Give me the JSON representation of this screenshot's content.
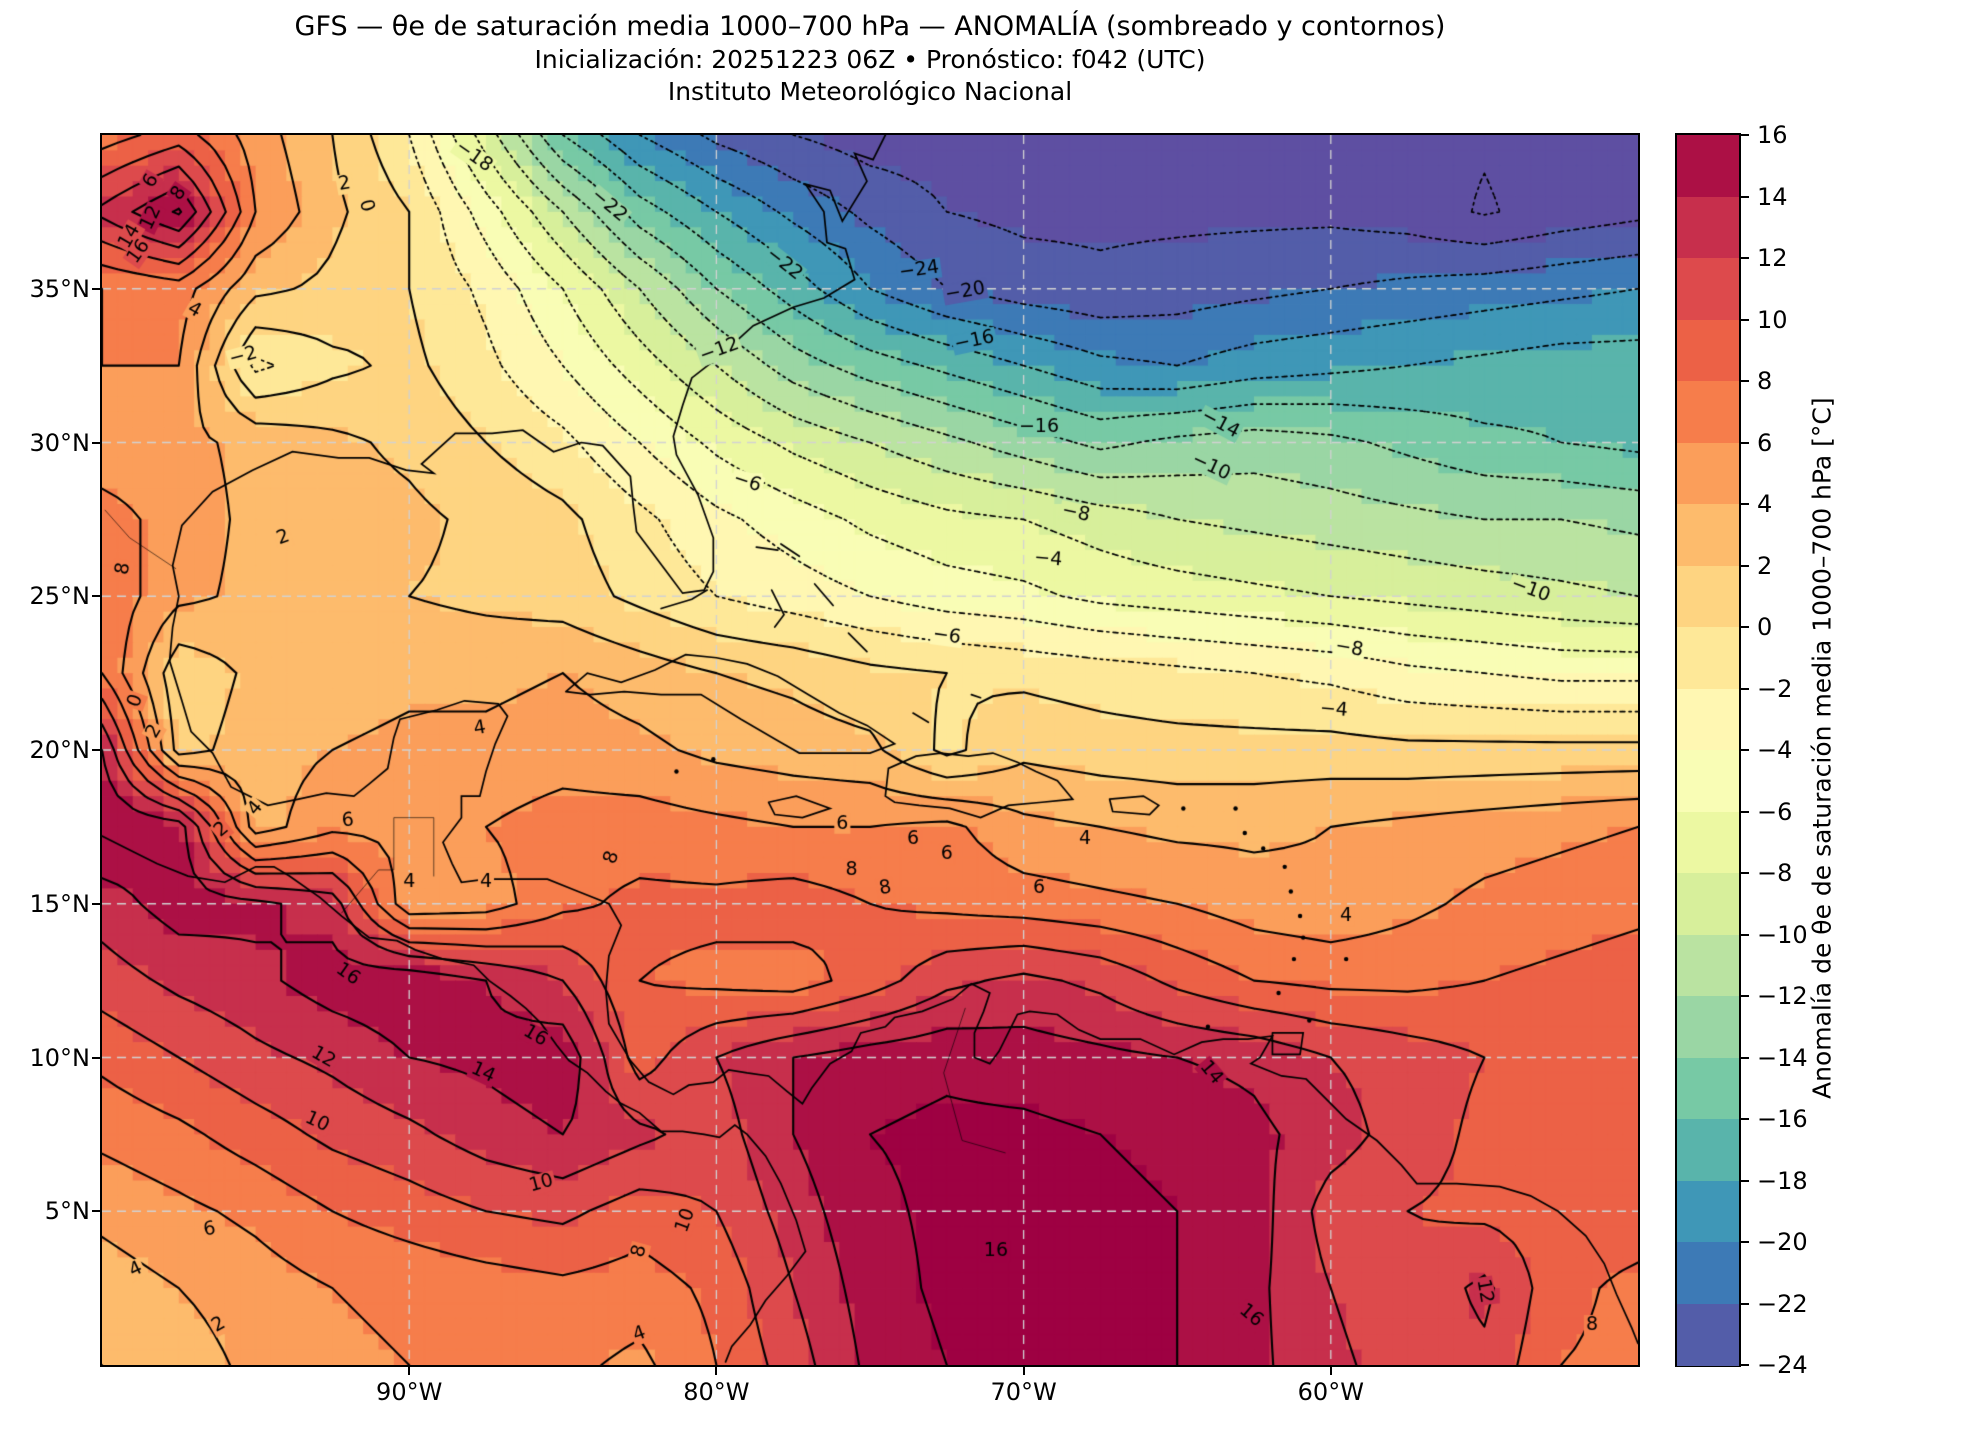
{
  "header": {
    "title": "GFS — θe de saturación media 1000–700 hPa — ANOMALÍA (sombreado y contornos)",
    "subtitle": "Inicialización: 20251223 06Z    •    Pronóstico: f042 (UTC)",
    "institution": "Instituto Meteorológico Nacional"
  },
  "axes": {
    "x_ticks": [
      {
        "label": "90°W",
        "lon": -90
      },
      {
        "label": "80°W",
        "lon": -80
      },
      {
        "label": "70°W",
        "lon": -70
      },
      {
        "label": "60°W",
        "lon": -60
      }
    ],
    "y_ticks": [
      {
        "label": "35°N",
        "lat": 35
      },
      {
        "label": "30°N",
        "lat": 30
      },
      {
        "label": "25°N",
        "lat": 25
      },
      {
        "label": "20°N",
        "lat": 20
      },
      {
        "label": "15°N",
        "lat": 15
      },
      {
        "label": "10°N",
        "lat": 10
      },
      {
        "label": "5°N",
        "lat": 5
      }
    ],
    "lon_range": [
      -100,
      -50
    ],
    "lat_range": [
      0,
      40
    ],
    "gridline_lons": [
      -90,
      -80,
      -70,
      -60
    ],
    "gridline_lats": [
      5,
      10,
      15,
      20,
      25,
      30,
      35
    ],
    "grid_color": "#d2d2d2"
  },
  "colorbar": {
    "label": "Anomalía de θe de saturación media 1000–700 hPa [°C]",
    "tick_values": [
      16,
      14,
      12,
      10,
      8,
      6,
      4,
      2,
      0,
      -2,
      -4,
      -6,
      -8,
      -10,
      -12,
      -14,
      -16,
      -18,
      -20,
      -22,
      -24
    ],
    "tick_labels": [
      "16",
      "14",
      "12",
      "10",
      "8",
      "6",
      "4",
      "2",
      "0",
      "−2",
      "−4",
      "−6",
      "−8",
      "−10",
      "−12",
      "−14",
      "−16",
      "−18",
      "−20",
      "−22",
      "−24"
    ],
    "vmin": -24,
    "vmax": 16,
    "band_step": 2
  },
  "chart_data": {
    "type": "heatmap",
    "title": "GFS saturation θe anomaly 1000–700 hPa (°C), shaded and contoured",
    "units": "°C",
    "colormap": {
      "name": "Spectral_r",
      "anchors": [
        "#5e4fa2",
        "#3288bd",
        "#66c2a5",
        "#abdda4",
        "#e6f598",
        "#ffffbf",
        "#fee08b",
        "#fdae61",
        "#f46d43",
        "#d53e4f",
        "#9e0142"
      ]
    },
    "fill_levels": {
      "min": -24,
      "max": 16,
      "step": 2
    },
    "line_levels": {
      "min": -26,
      "max": 16,
      "step": 2,
      "negative_style": "dotted",
      "positive_style": "solid"
    },
    "x_lons": [
      -100,
      -97.5,
      -95,
      -92.5,
      -90,
      -87.5,
      -85,
      -82.5,
      -80,
      -77.5,
      -75,
      -72.5,
      -70,
      -67.5,
      -65,
      -62.5,
      -60,
      -57.5,
      -55,
      -52.5,
      -50
    ],
    "y_lats": [
      40,
      37.5,
      35,
      32.5,
      30,
      27.5,
      25,
      22.5,
      20,
      17.5,
      15,
      12.5,
      10,
      7.5,
      5,
      2.5,
      0
    ],
    "values": [
      [
        7,
        9,
        5,
        2,
        -2,
        -9,
        -16,
        -20,
        -22.5,
        -24,
        -25,
        -25,
        -25,
        -25,
        -25,
        -25,
        -25,
        -25.5,
        -25.8,
        -25.2,
        -25
      ],
      [
        12.5,
        16.3,
        6,
        2.5,
        0,
        -5,
        -10,
        -15,
        -18,
        -20.5,
        -22.5,
        -24,
        -24.5,
        -24.5,
        -24.5,
        -24.5,
        -24.5,
        -25,
        -26.2,
        -25.2,
        -24.5
      ],
      [
        6,
        7,
        2.5,
        1.5,
        0,
        -2.5,
        -6,
        -10,
        -14,
        -17,
        -20,
        -22,
        -23,
        -23.5,
        -23,
        -22.5,
        -22,
        -21.5,
        -21,
        -20.5,
        -20
      ],
      [
        6,
        6,
        -2.5,
        -0.5,
        0.5,
        -1.5,
        -4,
        -7,
        -10,
        -13,
        -15,
        -16.5,
        -18,
        -19.5,
        -20,
        -19,
        -18.5,
        -18,
        -17.5,
        -17,
        -17
      ],
      [
        4.5,
        4.5,
        3.5,
        2.5,
        1.5,
        0,
        -1.5,
        -4,
        -6.5,
        -8.5,
        -10,
        -11.5,
        -13,
        -14.5,
        -13.5,
        -13,
        -13.5,
        -14.5,
        -15.5,
        -16,
        -16.5
      ],
      [
        7,
        5,
        3.5,
        3,
        2.5,
        1.5,
        0.5,
        -1.5,
        -3.5,
        -5,
        -6.5,
        -7.5,
        -8,
        -9,
        -10,
        -10.5,
        -11,
        -11.5,
        -12,
        -12,
        -12.5
      ],
      [
        7.5,
        4.5,
        3.5,
        2.5,
        2,
        1.5,
        1,
        -0.5,
        -2,
        -3,
        -4,
        -5,
        -5.5,
        -6.5,
        -7,
        -7.5,
        -8,
        -8.5,
        -9,
        -9.5,
        -10
      ],
      [
        8,
        0.5,
        2.5,
        3,
        3.5,
        3.5,
        4,
        3,
        2,
        1.5,
        0.5,
        0,
        -0.5,
        -1,
        -1.5,
        -2,
        -2.5,
        -3.5,
        -4,
        -4.5,
        -4.5
      ],
      [
        14,
        1.2,
        3,
        4,
        4.5,
        4.5,
        5,
        4.5,
        3.5,
        3,
        2.5,
        -0.5,
        1.5,
        1,
        0.8,
        0.8,
        0.8,
        0.5,
        0.5,
        0.5,
        0.5
      ],
      [
        16,
        15,
        3,
        5.5,
        5.5,
        6,
        7,
        7,
        6.5,
        6,
        6,
        6.5,
        4.5,
        4,
        3.5,
        3.5,
        4,
        4.5,
        5,
        5.5,
        6
      ],
      [
        13,
        15,
        14.5,
        13,
        4.5,
        5,
        7.5,
        8.5,
        8.5,
        9,
        8,
        7.5,
        7,
        6.5,
        6,
        5,
        4.5,
        5.5,
        6.5,
        7,
        7.5
      ],
      [
        11,
        12.5,
        13.5,
        15,
        15.5,
        14,
        12,
        8,
        7.5,
        7,
        9,
        11.5,
        12.5,
        11.5,
        9.5,
        8,
        7.5,
        7.5,
        8,
        8.5,
        9
      ],
      [
        8.5,
        10,
        11.5,
        12.5,
        14,
        14.5,
        15.5,
        9,
        12,
        14,
        15,
        15.5,
        15,
        14.5,
        14,
        13.5,
        12,
        11,
        10,
        9.5,
        9.5
      ],
      [
        6.5,
        7.5,
        9,
        10.5,
        11.5,
        13,
        14,
        12.5,
        11,
        14,
        16,
        16.5,
        16.5,
        16,
        15.5,
        14.5,
        13,
        11,
        9.5,
        9.5,
        9.5
      ],
      [
        4.5,
        5.5,
        6.5,
        8,
        9,
        10,
        10.5,
        9,
        10,
        13,
        15.5,
        16.5,
        17,
        16.5,
        16,
        15,
        11,
        10,
        9.5,
        9,
        9
      ],
      [
        3,
        4,
        5,
        6,
        6.5,
        7,
        7.5,
        7,
        8.5,
        12,
        15,
        16.5,
        17,
        16.5,
        16,
        14.5,
        12,
        10.5,
        12.5,
        8.5,
        7.5
      ],
      [
        2,
        3,
        4.5,
        5.5,
        6,
        6.5,
        6.5,
        5.5,
        8,
        11,
        14.5,
        16,
        16.5,
        16.5,
        16,
        14.5,
        12.5,
        11,
        11.5,
        8,
        7.5
      ]
    ],
    "contour_labels": [
      {
        "t": "6",
        "lon": -98.4,
        "lat": 38.5,
        "r": 60
      },
      {
        "t": "8",
        "lon": -97.5,
        "lat": 38.1,
        "r": 55
      },
      {
        "t": "12",
        "lon": -98.4,
        "lat": 37.3,
        "r": 65
      },
      {
        "t": "14",
        "lon": -99.1,
        "lat": 36.7,
        "r": 60
      },
      {
        "t": "16",
        "lon": -98.8,
        "lat": 36.2,
        "r": 55
      },
      {
        "t": "2",
        "lon": -92.1,
        "lat": 38.4,
        "r": 10
      },
      {
        "t": "0",
        "lon": -91.4,
        "lat": 37.7,
        "r": -75
      },
      {
        "t": "4",
        "lon": -97.0,
        "lat": 34.3,
        "r": -30
      },
      {
        "t": "−2",
        "lon": -95.4,
        "lat": 32.8,
        "r": 15
      },
      {
        "t": "−18",
        "lon": -87.9,
        "lat": 39.3,
        "r": -35
      },
      {
        "t": "−22",
        "lon": -83.5,
        "lat": 37.7,
        "r": -40
      },
      {
        "t": "−24",
        "lon": -73.4,
        "lat": 35.6,
        "r": 8
      },
      {
        "t": "−20",
        "lon": -71.9,
        "lat": 34.9,
        "r": 10
      },
      {
        "t": "−16",
        "lon": -71.6,
        "lat": 33.3,
        "r": 12
      },
      {
        "t": "−12",
        "lon": -79.9,
        "lat": 33.0,
        "r": 20
      },
      {
        "t": "−22",
        "lon": -77.8,
        "lat": 35.8,
        "r": -38
      },
      {
        "t": "−16",
        "lon": -69.5,
        "lat": 30.5,
        "r": 0
      },
      {
        "t": "−14",
        "lon": -63.6,
        "lat": 30.6,
        "r": -28
      },
      {
        "t": "−10",
        "lon": -63.9,
        "lat": 29.2,
        "r": -25
      },
      {
        "t": "−8",
        "lon": -68.3,
        "lat": 27.7,
        "r": -12
      },
      {
        "t": "−6",
        "lon": -79.0,
        "lat": 28.7,
        "r": -18
      },
      {
        "t": "−4",
        "lon": -69.2,
        "lat": 26.2,
        "r": -5
      },
      {
        "t": "−6",
        "lon": -72.5,
        "lat": 23.7,
        "r": -8
      },
      {
        "t": "−8",
        "lon": -59.4,
        "lat": 23.3,
        "r": -10
      },
      {
        "t": "−4",
        "lon": -59.9,
        "lat": 21.3,
        "r": -5
      },
      {
        "t": "−10",
        "lon": -53.5,
        "lat": 25.2,
        "r": -20
      },
      {
        "t": "2",
        "lon": -94.1,
        "lat": 26.9,
        "r": 20
      },
      {
        "t": "8",
        "lon": -99.3,
        "lat": 25.9,
        "r": 80
      },
      {
        "t": "0",
        "lon": -98.9,
        "lat": 21.6,
        "r": 70
      },
      {
        "t": "2",
        "lon": -98.3,
        "lat": 20.6,
        "r": 60
      },
      {
        "t": "4",
        "lon": -95.0,
        "lat": 18.1,
        "r": 50
      },
      {
        "t": "4",
        "lon": -87.7,
        "lat": 20.7,
        "r": 10
      },
      {
        "t": "6",
        "lon": -92.0,
        "lat": 17.7,
        "r": 5
      },
      {
        "t": "2",
        "lon": -96.1,
        "lat": 17.4,
        "r": 40
      },
      {
        "t": "4",
        "lon": -90.0,
        "lat": 15.7,
        "r": 0
      },
      {
        "t": "4",
        "lon": -87.5,
        "lat": 15.7,
        "r": 0
      },
      {
        "t": "8",
        "lon": -83.4,
        "lat": 16.5,
        "r": 70
      },
      {
        "t": "6",
        "lon": -73.6,
        "lat": 17.1,
        "r": 0
      },
      {
        "t": "6",
        "lon": -72.5,
        "lat": 16.6,
        "r": 0
      },
      {
        "t": "8",
        "lon": -75.6,
        "lat": 16.1,
        "r": 0
      },
      {
        "t": "8",
        "lon": -74.5,
        "lat": 15.5,
        "r": 10
      },
      {
        "t": "6",
        "lon": -75.9,
        "lat": 17.6,
        "r": 0
      },
      {
        "t": "4",
        "lon": -68.0,
        "lat": 17.1,
        "r": 0
      },
      {
        "t": "6",
        "lon": -69.5,
        "lat": 15.5,
        "r": 0
      },
      {
        "t": "4",
        "lon": -59.5,
        "lat": 14.6,
        "r": 0
      },
      {
        "t": "16",
        "lon": -92.0,
        "lat": 12.7,
        "r": -35
      },
      {
        "t": "12",
        "lon": -92.8,
        "lat": 10.0,
        "r": -30
      },
      {
        "t": "14",
        "lon": -87.6,
        "lat": 9.5,
        "r": -25
      },
      {
        "t": "16",
        "lon": -85.9,
        "lat": 10.7,
        "r": -30
      },
      {
        "t": "10",
        "lon": -93.0,
        "lat": 7.9,
        "r": -25
      },
      {
        "t": "10",
        "lon": -85.7,
        "lat": 5.9,
        "r": 15
      },
      {
        "t": "6",
        "lon": -96.5,
        "lat": 4.4,
        "r": 10
      },
      {
        "t": "4",
        "lon": -98.9,
        "lat": 3.1,
        "r": 25
      },
      {
        "t": "2",
        "lon": -96.2,
        "lat": 1.3,
        "r": 30
      },
      {
        "t": "8",
        "lon": -82.5,
        "lat": 3.7,
        "r": 75
      },
      {
        "t": "10",
        "lon": -81.0,
        "lat": 4.7,
        "r": 70
      },
      {
        "t": "4",
        "lon": -82.5,
        "lat": 1.0,
        "r": 20
      },
      {
        "t": "14",
        "lon": -63.9,
        "lat": 9.5,
        "r": -50
      },
      {
        "t": "16",
        "lon": -70.9,
        "lat": 3.7,
        "r": 0
      },
      {
        "t": "16",
        "lon": -62.6,
        "lat": 1.6,
        "r": -40
      },
      {
        "t": "12",
        "lon": -55.0,
        "lat": 2.4,
        "r": -80
      },
      {
        "t": "8",
        "lon": -51.5,
        "lat": 1.3,
        "r": 0
      }
    ]
  }
}
